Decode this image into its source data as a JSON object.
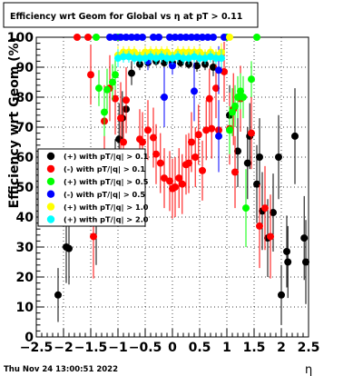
{
  "chart_data": {
    "type": "scatter",
    "title": "Efficiency wrt Geom for Global vs   η at pT > 0.11",
    "xlabel": "η",
    "ylabel": "Efficiency wrt Geom (%)",
    "xlim": [
      -2.5,
      2.5
    ],
    "ylim": [
      0,
      100
    ],
    "x_ticks": [
      "−2.5",
      "−2",
      "−1.5",
      "−1",
      "−0.5",
      "0",
      "0.5",
      "1",
      "1.5",
      "2",
      "2.5"
    ],
    "y_ticks": [
      "0",
      "10",
      "20",
      "30",
      "40",
      "50",
      "60",
      "70",
      "80",
      "90",
      "100"
    ],
    "grid": true,
    "legend_position": "left",
    "timestamp": "Thu Nov 24 13:00:51 2022",
    "series": [
      {
        "name": "(+) with pT/|q| > 0.1",
        "color": "#000000",
        "points": [
          {
            "x": -2.1,
            "y": 14,
            "err": 9
          },
          {
            "x": -1.95,
            "y": 30,
            "err": 12
          },
          {
            "x": -1.9,
            "y": 29.5,
            "err": 12
          },
          {
            "x": -1.4,
            "y": 38,
            "err": 14
          },
          {
            "x": -1.05,
            "y": 53,
            "err": 13
          },
          {
            "x": -0.98,
            "y": 66,
            "err": 12
          },
          {
            "x": -0.92,
            "y": 73,
            "err": 9
          },
          {
            "x": -0.85,
            "y": 76,
            "err": 7
          },
          {
            "x": -0.75,
            "y": 88,
            "err": 4
          },
          {
            "x": -0.6,
            "y": 91,
            "err": 2
          },
          {
            "x": -0.45,
            "y": 91.5,
            "err": 1.5
          },
          {
            "x": -0.3,
            "y": 92,
            "err": 1.5
          },
          {
            "x": -0.15,
            "y": 91.5,
            "err": 1.5
          },
          {
            "x": 0.0,
            "y": 91.5,
            "err": 1.5
          },
          {
            "x": 0.15,
            "y": 91.5,
            "err": 1.5
          },
          {
            "x": 0.3,
            "y": 91,
            "err": 1.5
          },
          {
            "x": 0.45,
            "y": 90.5,
            "err": 2
          },
          {
            "x": 0.6,
            "y": 91,
            "err": 2
          },
          {
            "x": 0.75,
            "y": 90,
            "err": 3
          },
          {
            "x": 1.05,
            "y": 74,
            "err": 10
          },
          {
            "x": 1.2,
            "y": 62,
            "err": 12
          },
          {
            "x": 1.38,
            "y": 58,
            "err": 12
          },
          {
            "x": 1.42,
            "y": 67,
            "err": 11
          },
          {
            "x": 1.55,
            "y": 51,
            "err": 13
          },
          {
            "x": 1.6,
            "y": 60,
            "err": 13
          },
          {
            "x": 1.65,
            "y": 42,
            "err": 13
          },
          {
            "x": 1.75,
            "y": 33,
            "err": 13
          },
          {
            "x": 1.85,
            "y": 41.5,
            "err": 13
          },
          {
            "x": 1.95,
            "y": 60,
            "err": 14
          },
          {
            "x": 2.0,
            "y": 14,
            "err": 10
          },
          {
            "x": 2.1,
            "y": 28.5,
            "err": 12
          },
          {
            "x": 2.12,
            "y": 25,
            "err": 12
          },
          {
            "x": 2.25,
            "y": 67,
            "err": 16
          },
          {
            "x": 2.42,
            "y": 33,
            "err": 14
          },
          {
            "x": 2.45,
            "y": 25,
            "err": 14
          }
        ]
      },
      {
        "name": "(-) with pT/|q| > 0.1",
        "color": "#ff0000",
        "points": [
          {
            "x": -1.75,
            "y": 100,
            "err": 0
          },
          {
            "x": -1.55,
            "y": 100,
            "err": 0
          },
          {
            "x": -1.5,
            "y": 87.5,
            "err": 10
          },
          {
            "x": -1.45,
            "y": 33.5,
            "err": 14
          },
          {
            "x": -1.25,
            "y": 72,
            "err": 12
          },
          {
            "x": -1.15,
            "y": 83,
            "err": 11
          },
          {
            "x": -1.05,
            "y": 79.5,
            "err": 12
          },
          {
            "x": -0.95,
            "y": 73,
            "err": 12
          },
          {
            "x": -0.9,
            "y": 65,
            "err": 12
          },
          {
            "x": -0.85,
            "y": 79,
            "err": 11
          },
          {
            "x": -0.6,
            "y": 66,
            "err": 10
          },
          {
            "x": -0.55,
            "y": 65,
            "err": 10
          },
          {
            "x": -0.45,
            "y": 69,
            "err": 10
          },
          {
            "x": -0.35,
            "y": 66.5,
            "err": 10
          },
          {
            "x": -0.3,
            "y": 61,
            "err": 10
          },
          {
            "x": -0.22,
            "y": 58,
            "err": 10
          },
          {
            "x": -0.15,
            "y": 53,
            "err": 10
          },
          {
            "x": -0.05,
            "y": 52,
            "err": 10
          },
          {
            "x": 0.0,
            "y": 49.5,
            "err": 10
          },
          {
            "x": 0.05,
            "y": 50,
            "err": 10
          },
          {
            "x": 0.12,
            "y": 53,
            "err": 10
          },
          {
            "x": 0.18,
            "y": 51,
            "err": 10
          },
          {
            "x": 0.25,
            "y": 57.5,
            "err": 10
          },
          {
            "x": 0.3,
            "y": 58,
            "err": 10
          },
          {
            "x": 0.35,
            "y": 65,
            "err": 10
          },
          {
            "x": 0.42,
            "y": 60,
            "err": 10
          },
          {
            "x": 0.48,
            "y": 67.5,
            "err": 10
          },
          {
            "x": 0.55,
            "y": 55.5,
            "err": 10
          },
          {
            "x": 0.62,
            "y": 69,
            "err": 10
          },
          {
            "x": 0.68,
            "y": 79.5,
            "err": 10
          },
          {
            "x": 0.72,
            "y": 69.5,
            "err": 10
          },
          {
            "x": 0.8,
            "y": 83,
            "err": 10
          },
          {
            "x": 0.85,
            "y": 69,
            "err": 10
          },
          {
            "x": 0.95,
            "y": 88.5,
            "err": 10
          },
          {
            "x": 1.05,
            "y": 69.5,
            "err": 12
          },
          {
            "x": 1.12,
            "y": 76,
            "err": 12
          },
          {
            "x": 1.15,
            "y": 55,
            "err": 12
          },
          {
            "x": 1.25,
            "y": 79.5,
            "err": 11
          },
          {
            "x": 1.45,
            "y": 68,
            "err": 12
          },
          {
            "x": 1.6,
            "y": 37,
            "err": 14
          },
          {
            "x": 1.7,
            "y": 43,
            "err": 14
          },
          {
            "x": 1.8,
            "y": 33.5,
            "err": 14
          }
        ]
      },
      {
        "name": "(+) with pT/|q| > 0.5",
        "color": "#00ff00",
        "points": [
          {
            "x": -1.4,
            "y": 100,
            "err": 0
          },
          {
            "x": -1.35,
            "y": 83,
            "err": 6
          },
          {
            "x": -1.25,
            "y": 75,
            "err": 8
          },
          {
            "x": -1.2,
            "y": 82.5,
            "err": 7
          },
          {
            "x": -1.1,
            "y": 85,
            "err": 6
          },
          {
            "x": -1.05,
            "y": 87.5,
            "err": 5
          },
          {
            "x": -1.0,
            "y": 100,
            "err": 0
          },
          {
            "x": 1.0,
            "y": 100,
            "err": 0
          },
          {
            "x": 1.05,
            "y": 69,
            "err": 8
          },
          {
            "x": 1.1,
            "y": 75,
            "err": 8
          },
          {
            "x": 1.15,
            "y": 77,
            "err": 7
          },
          {
            "x": 1.2,
            "y": 80,
            "err": 7
          },
          {
            "x": 1.25,
            "y": 82,
            "err": 6
          },
          {
            "x": 1.3,
            "y": 80,
            "err": 7
          },
          {
            "x": 1.35,
            "y": 43,
            "err": 13
          },
          {
            "x": 1.45,
            "y": 86,
            "err": 6
          },
          {
            "x": 1.55,
            "y": 100,
            "err": 0
          }
        ]
      },
      {
        "name": "(-) with pT/|q| > 0.5",
        "color": "#0000ff",
        "points": [
          {
            "x": -1.15,
            "y": 100,
            "err": 0
          },
          {
            "x": -1.05,
            "y": 100,
            "err": 0
          },
          {
            "x": -0.95,
            "y": 100,
            "err": 0
          },
          {
            "x": -0.85,
            "y": 100,
            "err": 0
          },
          {
            "x": -0.75,
            "y": 100,
            "err": 0
          },
          {
            "x": -0.65,
            "y": 100,
            "err": 0
          },
          {
            "x": -0.55,
            "y": 100,
            "err": 0
          },
          {
            "x": -0.45,
            "y": 92,
            "err": 3
          },
          {
            "x": -0.35,
            "y": 100,
            "err": 0
          },
          {
            "x": -0.25,
            "y": 100,
            "err": 0
          },
          {
            "x": -0.15,
            "y": 80,
            "err": 10
          },
          {
            "x": -0.05,
            "y": 100,
            "err": 0
          },
          {
            "x": 0.0,
            "y": 90.5,
            "err": 3
          },
          {
            "x": 0.05,
            "y": 100,
            "err": 0
          },
          {
            "x": 0.15,
            "y": 100,
            "err": 0
          },
          {
            "x": 0.25,
            "y": 100,
            "err": 0
          },
          {
            "x": 0.35,
            "y": 100,
            "err": 0
          },
          {
            "x": 0.4,
            "y": 82,
            "err": 10
          },
          {
            "x": 0.45,
            "y": 100,
            "err": 0
          },
          {
            "x": 0.55,
            "y": 100,
            "err": 0
          },
          {
            "x": 0.65,
            "y": 100,
            "err": 0
          },
          {
            "x": 0.75,
            "y": 100,
            "err": 0
          },
          {
            "x": 0.85,
            "y": 89,
            "err": 8
          },
          {
            "x": 0.95,
            "y": 100,
            "err": 0
          },
          {
            "x": 0.85,
            "y": 67,
            "err": 12
          }
        ]
      },
      {
        "name": "(+) with pT/|q| > 1.0",
        "color": "#ffff00",
        "points": [
          {
            "x": -1.0,
            "y": 94,
            "err": 3
          },
          {
            "x": -0.9,
            "y": 95,
            "err": 2
          },
          {
            "x": -0.8,
            "y": 95,
            "err": 2
          },
          {
            "x": -0.7,
            "y": 95,
            "err": 2
          },
          {
            "x": -0.6,
            "y": 94,
            "err": 2
          },
          {
            "x": -0.5,
            "y": 95,
            "err": 2
          },
          {
            "x": -0.4,
            "y": 95,
            "err": 2
          },
          {
            "x": -0.3,
            "y": 95,
            "err": 2
          },
          {
            "x": -0.2,
            "y": 95,
            "err": 2
          },
          {
            "x": -0.1,
            "y": 95,
            "err": 2
          },
          {
            "x": 0.0,
            "y": 94,
            "err": 2
          },
          {
            "x": 0.1,
            "y": 95,
            "err": 2
          },
          {
            "x": 0.2,
            "y": 95,
            "err": 2
          },
          {
            "x": 0.3,
            "y": 95,
            "err": 2
          },
          {
            "x": 0.4,
            "y": 95,
            "err": 2
          },
          {
            "x": 0.5,
            "y": 95,
            "err": 2
          },
          {
            "x": 0.6,
            "y": 94,
            "err": 2
          },
          {
            "x": 0.7,
            "y": 95,
            "err": 2
          },
          {
            "x": 0.8,
            "y": 94,
            "err": 2
          },
          {
            "x": 0.9,
            "y": 95,
            "err": 3
          },
          {
            "x": 1.05,
            "y": 100,
            "err": 0
          }
        ]
      },
      {
        "name": "(+) with pT/|q| > 2.0",
        "color": "#00ffff",
        "points": [
          {
            "x": -1.0,
            "y": 93,
            "err": 3
          },
          {
            "x": -0.9,
            "y": 93.5,
            "err": 2
          },
          {
            "x": -0.8,
            "y": 93.5,
            "err": 2
          },
          {
            "x": -0.7,
            "y": 93,
            "err": 2
          },
          {
            "x": -0.6,
            "y": 93,
            "err": 2
          },
          {
            "x": -0.5,
            "y": 93,
            "err": 2
          },
          {
            "x": -0.4,
            "y": 93.5,
            "err": 2
          },
          {
            "x": -0.3,
            "y": 93,
            "err": 2
          },
          {
            "x": -0.2,
            "y": 93.5,
            "err": 2
          },
          {
            "x": -0.1,
            "y": 93,
            "err": 2
          },
          {
            "x": 0.0,
            "y": 93,
            "err": 2
          },
          {
            "x": 0.1,
            "y": 93.5,
            "err": 2
          },
          {
            "x": 0.2,
            "y": 93,
            "err": 2
          },
          {
            "x": 0.3,
            "y": 93,
            "err": 2
          },
          {
            "x": 0.4,
            "y": 93.5,
            "err": 2
          },
          {
            "x": 0.5,
            "y": 93,
            "err": 2
          },
          {
            "x": 0.6,
            "y": 93,
            "err": 2
          },
          {
            "x": 0.7,
            "y": 93.5,
            "err": 2
          },
          {
            "x": 0.8,
            "y": 93,
            "err": 2
          },
          {
            "x": 0.9,
            "y": 93,
            "err": 3
          }
        ]
      }
    ]
  }
}
